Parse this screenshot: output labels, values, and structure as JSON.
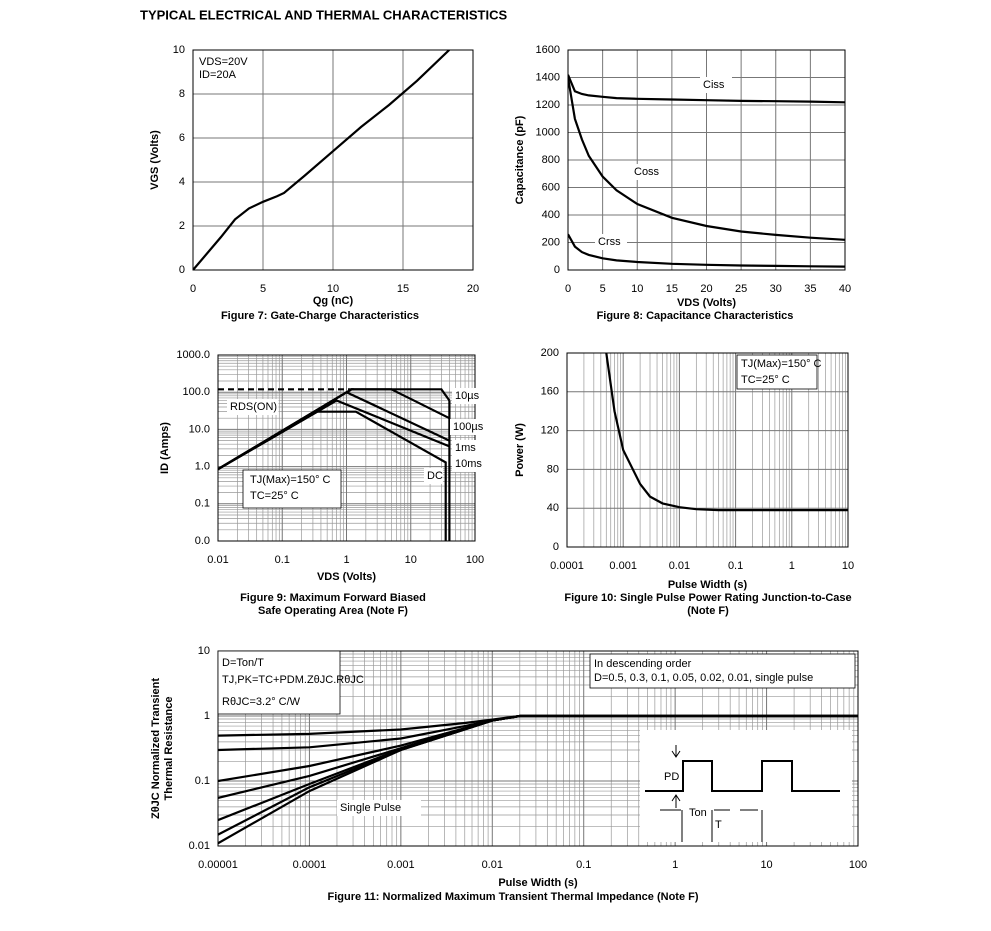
{
  "page_title": "TYPICAL ELECTRICAL AND THERMAL CHARACTERISTICS",
  "inset": {
    "labels": [
      "PD",
      "Ton",
      "T"
    ]
  },
  "chart_data": [
    {
      "type": "line",
      "title": [
        "Figure 7: Gate-Charge Characteristics"
      ],
      "xlabel": "Qg (nC)",
      "ylabel": [
        "VGS (Volts)"
      ],
      "xlim": [
        0,
        20
      ],
      "xticks": [
        0,
        5,
        10,
        15,
        20
      ],
      "ylim": [
        0,
        10
      ],
      "yticks": [
        0,
        2,
        4,
        6,
        8,
        10
      ],
      "grid": true,
      "annotations": [
        "VDS=20V",
        "ID=20A"
      ],
      "series": [
        {
          "color": "#000000",
          "x": [
            0,
            2,
            3,
            4,
            5,
            6,
            6.5,
            8,
            10,
            12,
            14,
            16,
            18.3
          ],
          "values": [
            0,
            1.5,
            2.3,
            2.8,
            3.1,
            3.35,
            3.5,
            4.3,
            5.4,
            6.5,
            7.5,
            8.6,
            10
          ]
        }
      ]
    },
    {
      "type": "line",
      "title": [
        "Figure 8: Capacitance Characteristics"
      ],
      "xlabel": "VDS (Volts)",
      "ylabel": [
        "Capacitance (pF)"
      ],
      "xlim": [
        0,
        40
      ],
      "xticks": [
        0,
        5,
        10,
        15,
        20,
        25,
        30,
        35,
        40
      ],
      "ylim": [
        0,
        1600
      ],
      "yticks": [
        0,
        200,
        400,
        600,
        800,
        1000,
        1200,
        1400,
        1600
      ],
      "grid": true,
      "annotations": [],
      "series": [
        {
          "name": "Ciss",
          "color": "#000000",
          "x": [
            0,
            1,
            2,
            3,
            5,
            7,
            10,
            15,
            20,
            25,
            30,
            35,
            40
          ],
          "values": [
            1420,
            1300,
            1280,
            1270,
            1260,
            1250,
            1245,
            1240,
            1235,
            1230,
            1228,
            1225,
            1220
          ]
        },
        {
          "name": "Coss",
          "color": "#000000",
          "x": [
            0,
            1,
            2,
            3,
            5,
            7,
            10,
            15,
            20,
            25,
            30,
            35,
            40
          ],
          "values": [
            1400,
            1100,
            950,
            830,
            680,
            580,
            480,
            380,
            320,
            280,
            255,
            235,
            220
          ]
        },
        {
          "name": "Crss",
          "color": "#000000",
          "x": [
            0,
            1,
            2,
            3,
            5,
            7,
            10,
            15,
            20,
            25,
            30,
            35,
            40
          ],
          "values": [
            260,
            170,
            130,
            110,
            85,
            70,
            58,
            45,
            38,
            33,
            30,
            27,
            25
          ]
        }
      ]
    },
    {
      "type": "line",
      "title": [
        "Figure 9: Maximum Forward Biased",
        "Safe Operating Area (Note F)"
      ],
      "xlabel": "VDS (Volts)",
      "ylabel": [
        "ID (Amps)"
      ],
      "xscale": "log",
      "yscale": "log",
      "xlim": [
        0.01,
        100
      ],
      "xticks": [
        0.01,
        0.1,
        1,
        10,
        100
      ],
      "ylim": [
        0.01,
        1000
      ],
      "yticks": [
        {
          "value": 0.01,
          "label": "0.0"
        },
        0.1,
        {
          "value": 1,
          "label": "1.0"
        },
        {
          "value": 10,
          "label": "10.0"
        },
        {
          "value": 100,
          "label": "100.0"
        },
        {
          "value": 1000,
          "label": "1000.0"
        }
      ],
      "grid": true,
      "annotations": [
        "TJ(Max)=150° C",
        "TC=25° C"
      ],
      "series": [
        {
          "name": "10µs",
          "color": "#000000",
          "x": [
            0.01,
            1.2,
            30,
            40
          ],
          "values": [
            0.85,
            120,
            120,
            60
          ]
        },
        {
          "name": "100µs",
          "color": "#000000",
          "x": [
            0.01,
            1.2,
            5,
            40
          ],
          "values": [
            0.85,
            120,
            120,
            20
          ]
        },
        {
          "name": "1ms",
          "color": "#000000",
          "x": [
            0.01,
            1,
            40
          ],
          "values": [
            0.85,
            100,
            5
          ]
        },
        {
          "name": "10ms",
          "color": "#000000",
          "x": [
            0.01,
            0.7,
            40
          ],
          "values": [
            0.85,
            60,
            3.5
          ]
        },
        {
          "name": "DC",
          "color": "#000000",
          "x": [
            0.01,
            0.35,
            1.4,
            35,
            35
          ],
          "values": [
            0.85,
            30,
            30,
            1.3,
            0.01
          ]
        },
        {
          "name": "RDS(ON)",
          "color": "#000000",
          "dash": true,
          "x": [
            0.01,
            1.3
          ],
          "values": [
            120,
            120
          ]
        },
        {
          "color": "#000000",
          "x": [
            40,
            40
          ],
          "values": [
            60,
            0.01
          ]
        }
      ]
    },
    {
      "type": "line",
      "title": [
        "Figure 10: Single Pulse Power Rating Junction-to-Case",
        "(Note F)"
      ],
      "xlabel": "Pulse Width (s)",
      "ylabel": [
        "Power (W)"
      ],
      "xscale": "log",
      "xlim": [
        0.0001,
        10
      ],
      "xticks": [
        0.0001,
        0.001,
        0.01,
        0.1,
        1,
        10
      ],
      "ylim": [
        0,
        200
      ],
      "yticks": [
        0,
        40,
        80,
        120,
        160,
        200
      ],
      "grid": true,
      "annotations": [
        "TJ(Max)=150° C",
        "TC=25° C"
      ],
      "series": [
        {
          "color": "#000000",
          "x": [
            0.0005,
            0.0007,
            0.001,
            0.002,
            0.003,
            0.005,
            0.01,
            0.02,
            0.05,
            10
          ],
          "values": [
            200,
            140,
            100,
            65,
            52,
            45,
            41,
            39,
            38,
            38
          ]
        }
      ]
    },
    {
      "type": "line",
      "title": [
        "Figure 11: Normalized Maximum Transient Thermal Impedance (Note F)"
      ],
      "xlabel": "Pulse Width (s)",
      "ylabel": [
        "ZθJC Normalized Transient",
        "Thermal Resistance"
      ],
      "xscale": "log",
      "yscale": "log",
      "xlim": [
        1e-05,
        100
      ],
      "xticks": [
        1e-05,
        0.0001,
        0.001,
        0.01,
        0.1,
        1,
        10,
        100
      ],
      "ylim": [
        0.01,
        10
      ],
      "yticks": [
        0.01,
        0.1,
        1,
        10
      ],
      "grid": true,
      "annotations": [
        "D=Ton/T",
        "TJ,PK=TC+PDM.ZθJC.RθJC",
        "RθJC=3.2° C/W",
        "In descending order",
        "D=0.5, 0.3, 0.1, 0.05, 0.02, 0.01, single pulse"
      ],
      "series": [
        {
          "color": "#000000",
          "x": [
            1e-05,
            0.0001,
            0.001,
            0.005,
            0.01,
            0.02,
            100
          ],
          "values": [
            0.5,
            0.53,
            0.62,
            0.78,
            0.88,
            1,
            1
          ]
        },
        {
          "color": "#000000",
          "x": [
            1e-05,
            0.0001,
            0.001,
            0.005,
            0.01,
            0.02,
            100
          ],
          "values": [
            0.3,
            0.33,
            0.45,
            0.7,
            0.86,
            1,
            1
          ]
        },
        {
          "color": "#000000",
          "x": [
            1e-05,
            0.0001,
            0.001,
            0.005,
            0.01,
            0.02,
            100
          ],
          "values": [
            0.1,
            0.17,
            0.35,
            0.65,
            0.85,
            1,
            1
          ]
        },
        {
          "color": "#000000",
          "x": [
            1e-05,
            0.0001,
            0.001,
            0.005,
            0.01,
            0.02,
            100
          ],
          "values": [
            0.055,
            0.12,
            0.32,
            0.64,
            0.85,
            1,
            1
          ]
        },
        {
          "color": "#000000",
          "x": [
            1e-05,
            0.0001,
            0.001,
            0.005,
            0.01,
            0.02,
            100
          ],
          "values": [
            0.025,
            0.09,
            0.31,
            0.63,
            0.85,
            1,
            1
          ]
        },
        {
          "color": "#000000",
          "x": [
            1e-05,
            0.0001,
            0.001,
            0.005,
            0.01,
            0.02,
            100
          ],
          "values": [
            0.015,
            0.08,
            0.3,
            0.62,
            0.85,
            1,
            1
          ]
        },
        {
          "name": "Single Pulse",
          "color": "#000000",
          "x": [
            1e-05,
            0.0001,
            0.001,
            0.005,
            0.01,
            0.02,
            100
          ],
          "values": [
            0.011,
            0.07,
            0.3,
            0.62,
            0.85,
            1,
            1
          ]
        }
      ]
    }
  ]
}
